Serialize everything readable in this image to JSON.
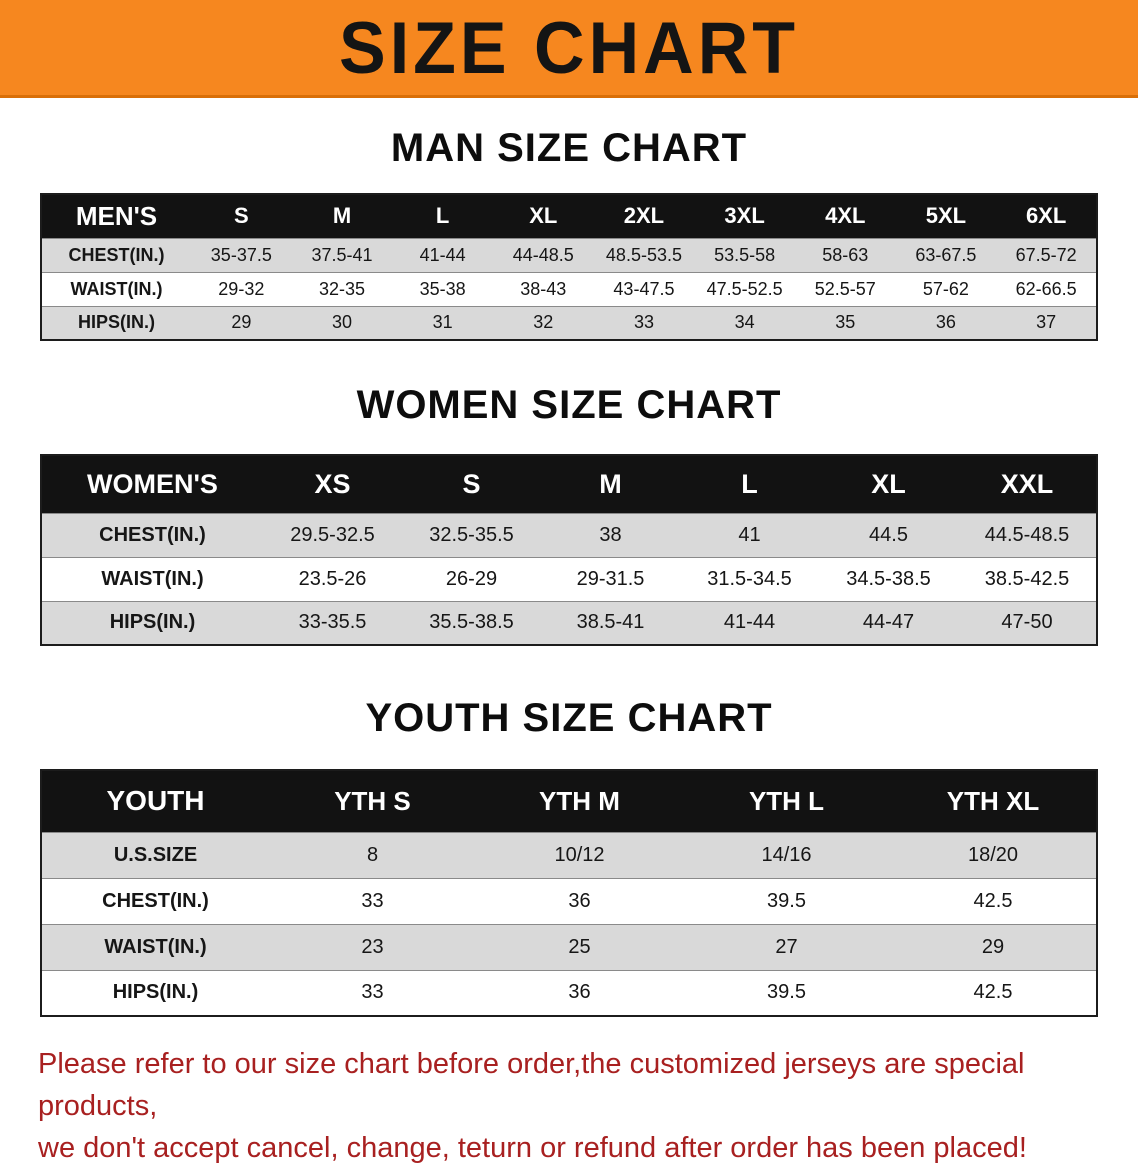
{
  "banner": {
    "title": "SIZE CHART"
  },
  "colors": {
    "banner_orange": "#f6871f",
    "disclaimer_red": "#a82020",
    "table_header_bg": "#121212",
    "row_stripe_gray": "#d9d9d9"
  },
  "sections": [
    {
      "heading": "MAN SIZE CHART",
      "table": {
        "header": [
          "MEN'S",
          "S",
          "M",
          "L",
          "XL",
          "2XL",
          "3XL",
          "4XL",
          "5XL",
          "6XL"
        ],
        "rows": [
          [
            "CHEST(IN.)",
            "35-37.5",
            "37.5-41",
            "41-44",
            "44-48.5",
            "48.5-53.5",
            "53.5-58",
            "58-63",
            "63-67.5",
            "67.5-72"
          ],
          [
            "WAIST(IN.)",
            "29-32",
            "32-35",
            "35-38",
            "38-43",
            "43-47.5",
            "47.5-52.5",
            "52.5-57",
            "57-62",
            "62-66.5"
          ],
          [
            "HIPS(IN.)",
            "29",
            "30",
            "31",
            "32",
            "33",
            "34",
            "35",
            "36",
            "37"
          ]
        ]
      }
    },
    {
      "heading": "WOMEN SIZE CHART",
      "table": {
        "header": [
          "WOMEN'S",
          "XS",
          "S",
          "M",
          "L",
          "XL",
          "XXL"
        ],
        "rows": [
          [
            "CHEST(IN.)",
            "29.5-32.5",
            "32.5-35.5",
            "38",
            "41",
            "44.5",
            "44.5-48.5"
          ],
          [
            "WAIST(IN.)",
            "23.5-26",
            "26-29",
            "29-31.5",
            "31.5-34.5",
            "34.5-38.5",
            "38.5-42.5"
          ],
          [
            "HIPS(IN.)",
            "33-35.5",
            "35.5-38.5",
            "38.5-41",
            "41-44",
            "44-47",
            "47-50"
          ]
        ]
      }
    },
    {
      "heading": "YOUTH SIZE CHART",
      "table": {
        "header": [
          "YOUTH",
          "YTH S",
          "YTH M",
          "YTH L",
          "YTH XL"
        ],
        "rows": [
          [
            "U.S.SIZE",
            "8",
            "10/12",
            "14/16",
            "18/20"
          ],
          [
            "CHEST(IN.)",
            "33",
            "36",
            "39.5",
            "42.5"
          ],
          [
            "WAIST(IN.)",
            "23",
            "25",
            "27",
            "29"
          ],
          [
            "HIPS(IN.)",
            "33",
            "36",
            "39.5",
            "42.5"
          ]
        ]
      }
    }
  ],
  "disclaimer": {
    "line1": "Please refer to our size chart before order,the customized jerseys are special products,",
    "line2": "we don't accept cancel, change, teturn or refund after order has been placed!"
  }
}
